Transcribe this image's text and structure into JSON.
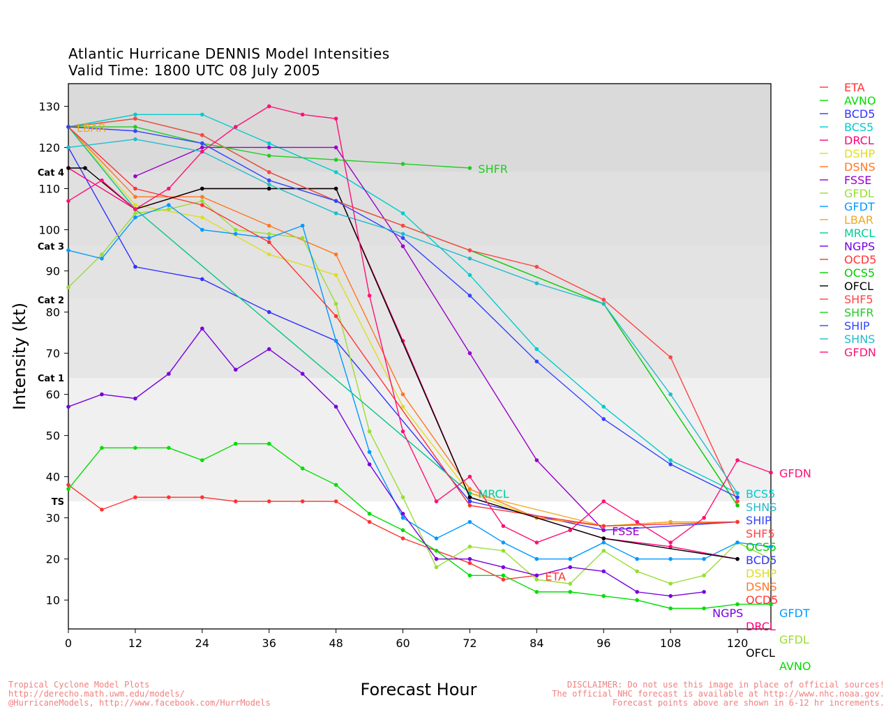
{
  "chart_data": {
    "type": "line",
    "title": "Atlantic Hurricane DENNIS Model Intensities",
    "subtitle": "Valid Time: 1800 UTC 08 July 2005",
    "xlabel": "Forecast Hour",
    "ylabel": "Intensity (kt)",
    "xlim": [
      0,
      126
    ],
    "ylim": [
      3,
      135.5
    ],
    "xticks": [
      0,
      12,
      24,
      36,
      48,
      60,
      72,
      84,
      96,
      108,
      120
    ],
    "yticks": [
      10,
      20,
      30,
      40,
      50,
      60,
      70,
      80,
      90,
      100,
      110,
      120,
      130
    ],
    "legend_position": "right-outside",
    "grid": false,
    "bands": [
      {
        "label": "TS",
        "from": 34,
        "to": 64,
        "color": "#f0f0f0"
      },
      {
        "label": "Cat 1",
        "from": 64,
        "to": 83,
        "color": "#e6e6e6"
      },
      {
        "label": "Cat 2",
        "from": 83,
        "to": 96,
        "color": "#e3e3e3"
      },
      {
        "label": "Cat 3",
        "from": 96,
        "to": 114,
        "color": "#e0e0e0"
      },
      {
        "label": "Cat 4",
        "from": 114,
        "to": 135.5,
        "color": "#dadada"
      }
    ],
    "series": [
      {
        "name": "ETA",
        "color": "#ff3333",
        "label_at": "end",
        "x": [
          0,
          6,
          12,
          18,
          24,
          30,
          36,
          42,
          48,
          54,
          60,
          66,
          72,
          78,
          84
        ],
        "y": [
          38,
          32,
          35,
          35,
          35,
          34,
          34,
          34,
          34,
          29,
          25,
          22,
          19,
          15,
          16
        ]
      },
      {
        "name": "AVNO",
        "color": "#00dd00",
        "label_at": "end",
        "x": [
          0,
          6,
          12,
          18,
          24,
          30,
          36,
          42,
          48,
          54,
          60,
          66,
          72,
          78,
          84,
          90,
          96,
          102,
          108,
          114,
          120,
          126
        ],
        "y": [
          37,
          47,
          47,
          47,
          44,
          48,
          48,
          42,
          38,
          31,
          27,
          22,
          16,
          16,
          12,
          12,
          11,
          10,
          8,
          8,
          9,
          9
        ]
      },
      {
        "name": "BCD5",
        "color": "#3333ff",
        "label_at": "end",
        "x": [
          0,
          12,
          24,
          36,
          48,
          72,
          96,
          120
        ],
        "y": [
          120,
          91,
          88,
          80,
          73,
          34,
          27,
          29
        ]
      },
      {
        "name": "BCS5",
        "color": "#00cccc",
        "label_at": "end",
        "x": [
          0,
          12,
          24,
          36,
          48,
          60,
          72,
          84,
          96,
          108,
          120
        ],
        "y": [
          125,
          128,
          128,
          121,
          114,
          104,
          89,
          71,
          57,
          44,
          36
        ]
      },
      {
        "name": "DRCL",
        "color": "#ff0077",
        "label_at": "end",
        "x": [
          0,
          12,
          24,
          36,
          48,
          60,
          72,
          96,
          108,
          120
        ],
        "y": [
          115,
          105,
          110,
          110,
          110,
          73,
          35,
          25,
          23,
          20
        ]
      },
      {
        "name": "DSHP",
        "color": "#dddd22",
        "label_at": "end",
        "x": [
          0,
          12,
          24,
          36,
          48,
          60,
          72,
          84,
          96,
          108,
          120
        ],
        "y": [
          125,
          106,
          103,
          94,
          89,
          57,
          36,
          30,
          28,
          29,
          29
        ]
      },
      {
        "name": "DSNS",
        "color": "#ff7722",
        "label_at": "end",
        "x": [
          0,
          12,
          24,
          36,
          48,
          60,
          72,
          84,
          96,
          108,
          120
        ],
        "y": [
          125,
          108,
          108,
          101,
          94,
          60,
          37,
          30,
          28,
          29,
          29
        ]
      },
      {
        "name": "FSSE",
        "color": "#9900cc",
        "label_at": "end",
        "x": [
          12,
          24,
          36,
          48,
          60,
          72,
          84,
          96
        ],
        "y": [
          113,
          120,
          120,
          120,
          96,
          70,
          44,
          27
        ]
      },
      {
        "name": "GFDL",
        "color": "#99dd33",
        "label_at": "end",
        "x": [
          0,
          6,
          12,
          18,
          24,
          30,
          36,
          42,
          48,
          54,
          60,
          66,
          72,
          78,
          84,
          90,
          96,
          102,
          108,
          114,
          120,
          126
        ],
        "y": [
          86,
          94,
          104,
          105,
          107,
          100,
          99,
          98,
          82,
          51,
          35,
          18,
          23,
          22,
          15,
          14,
          22,
          17,
          14,
          16,
          24,
          20
        ]
      },
      {
        "name": "GFDT",
        "color": "#0099ff",
        "label_at": "end",
        "x": [
          0,
          6,
          12,
          18,
          24,
          30,
          36,
          42,
          48,
          54,
          60,
          66,
          72,
          78,
          84,
          90,
          96,
          102,
          108,
          114,
          120,
          126
        ],
        "y": [
          95,
          93,
          103,
          106,
          100,
          99,
          98,
          101,
          73,
          46,
          30,
          25,
          29,
          24,
          20,
          20,
          24,
          20,
          20,
          20,
          24,
          23
        ]
      },
      {
        "name": "LBAR",
        "color": "#eeaa22",
        "label_at": "start",
        "x": [
          0,
          12,
          72,
          96,
          108,
          120
        ],
        "y": [
          125,
          105,
          36,
          28,
          29,
          29
        ]
      },
      {
        "name": "MRCL",
        "color": "#00cc99",
        "label_at": "end",
        "x": [
          0,
          12,
          72
        ],
        "y": [
          125,
          105,
          36
        ]
      },
      {
        "name": "NGPS",
        "color": "#7700dd",
        "label_at": "end",
        "x": [
          0,
          6,
          12,
          18,
          24,
          30,
          36,
          42,
          48,
          54,
          60,
          66,
          72,
          78,
          84,
          90,
          96,
          102,
          108,
          114
        ],
        "y": [
          57,
          60,
          59,
          65,
          76,
          66,
          71,
          65,
          57,
          43,
          31,
          20,
          20,
          18,
          16,
          18,
          17,
          12,
          11,
          12
        ]
      },
      {
        "name": "OCD5",
        "color": "#ff3333",
        "label_at": "end",
        "x": [
          0,
          12,
          24,
          36,
          48,
          72,
          96,
          120
        ],
        "y": [
          125,
          110,
          106,
          97,
          79,
          33,
          28,
          29
        ]
      },
      {
        "name": "OCS5",
        "color": "#00cc00",
        "label_at": "end",
        "x": [
          0,
          12,
          24,
          36,
          48,
          60,
          72,
          96,
          120
        ],
        "y": [
          125,
          127,
          123,
          114,
          107,
          101,
          95,
          82,
          33
        ]
      },
      {
        "name": "OFCL",
        "color": "#000000",
        "label_at": "end",
        "x": [
          0,
          3,
          12,
          24,
          36,
          48,
          72,
          96,
          120
        ],
        "y": [
          115,
          115,
          105,
          110,
          110,
          110,
          35,
          25,
          20
        ]
      },
      {
        "name": "SHF5",
        "color": "#ff4444",
        "label_at": "end",
        "x": [
          0,
          12,
          24,
          36,
          48,
          60,
          72,
          84,
          96,
          108,
          120
        ],
        "y": [
          125,
          127,
          123,
          114,
          107,
          101,
          95,
          91,
          83,
          69,
          34
        ]
      },
      {
        "name": "SHFR",
        "color": "#22cc22",
        "label_at": "end",
        "x": [
          0,
          12,
          24,
          36,
          48,
          60,
          72
        ],
        "y": [
          125,
          125,
          121,
          118,
          117,
          116,
          115
        ]
      },
      {
        "name": "SHIP",
        "color": "#3344ff",
        "label_at": "end",
        "x": [
          0,
          12,
          24,
          36,
          48,
          60,
          72,
          84,
          96,
          108,
          120
        ],
        "y": [
          125,
          124,
          121,
          112,
          107,
          98,
          84,
          68,
          54,
          43,
          35
        ]
      },
      {
        "name": "SHNS",
        "color": "#22bbcc",
        "label_at": "end",
        "x": [
          0,
          12,
          24,
          36,
          48,
          60,
          72,
          84,
          96,
          108,
          120
        ],
        "y": [
          120,
          122,
          119,
          111,
          104,
          99,
          93,
          87,
          82,
          60,
          36
        ]
      },
      {
        "name": "GFDN",
        "color": "#ff1177",
        "label_at": "end",
        "x": [
          0,
          6,
          12,
          18,
          24,
          30,
          36,
          42,
          48,
          54,
          60,
          66,
          72,
          78,
          84,
          90,
          96,
          102,
          108,
          114,
          120,
          126
        ],
        "y": [
          107,
          112,
          105,
          110,
          119,
          125,
          130,
          128,
          127,
          84,
          51,
          34,
          40,
          28,
          24,
          27,
          34,
          29,
          24,
          30,
          44,
          41
        ]
      }
    ]
  },
  "footer": {
    "left": [
      "Tropical Cyclone Model Plots",
      "http://derecho.math.uwm.edu/models/",
      "@HurricaneModels, http://www.facebook.com/HurrModels"
    ],
    "right": [
      "DISCLAIMER: Do not use this image in place of official sources!",
      "The official NHC forecast is available at http://www.nhc.noaa.gov.",
      "Forecast points above are shown in 6-12 hr increments."
    ]
  }
}
